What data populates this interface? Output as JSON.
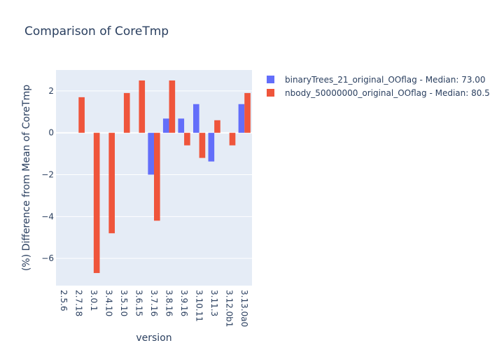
{
  "chart_data": {
    "type": "bar",
    "title": "Comparison of CoreTmp",
    "xlabel": "version",
    "ylabel": "(%) Difference from Mean of CoreTmp",
    "categories": [
      "2.5.6",
      "2.7.18",
      "3.0.1",
      "3.4.10",
      "3.5.10",
      "3.6.15",
      "3.7.16",
      "3.8.16",
      "3.9.16",
      "3.10.11",
      "3.11.3",
      "3.12.0b1",
      "3.13.0a0"
    ],
    "ylim": [
      -7.3,
      3.0
    ],
    "yticks": [
      -6,
      -4,
      -2,
      0,
      2
    ],
    "ytick_labels": [
      "−6",
      "−4",
      "−2",
      "0",
      "2"
    ],
    "grid": true,
    "legend_position": "top-right",
    "series": [
      {
        "name": "binaryTrees_21_original_OOflag - Median: 73.00",
        "color": "#636efa",
        "values": [
          null,
          null,
          null,
          null,
          null,
          null,
          -2.0,
          0.68,
          0.68,
          1.37,
          -1.37,
          null,
          1.37
        ]
      },
      {
        "name": "nbody_50000000_original_OOflag - Median: 80.50",
        "color": "#ef553b",
        "values": [
          null,
          1.7,
          -6.7,
          -4.8,
          1.9,
          2.5,
          -4.2,
          2.5,
          -0.6,
          -1.2,
          0.6,
          -0.6,
          1.9
        ]
      }
    ]
  }
}
